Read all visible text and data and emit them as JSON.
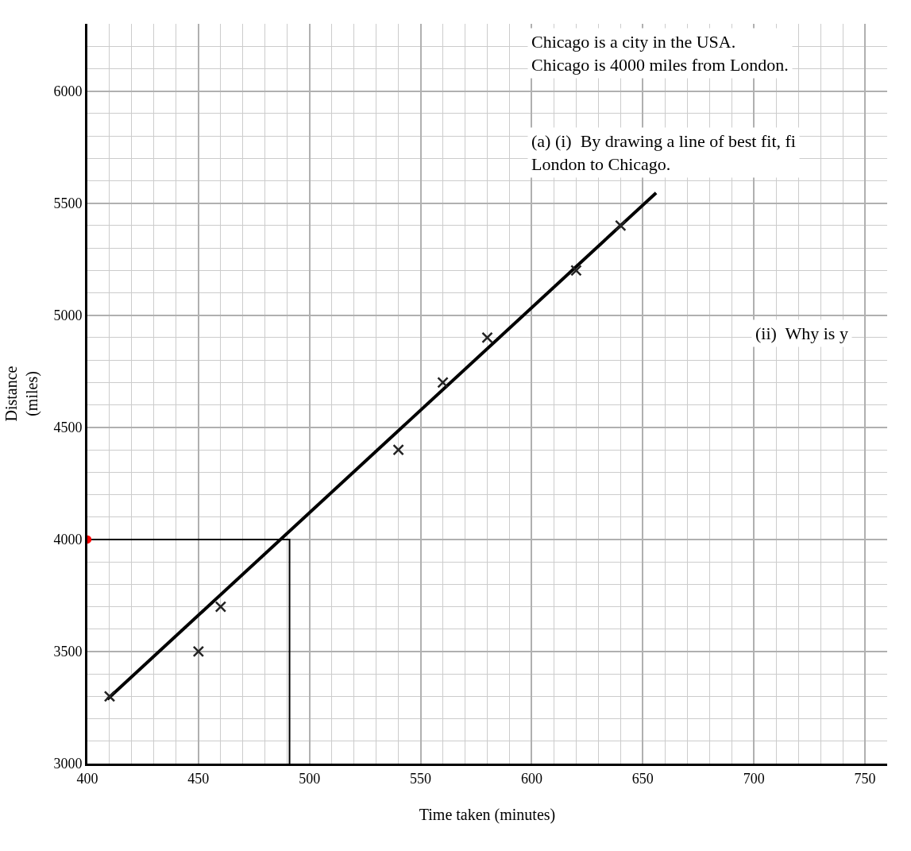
{
  "chart_data": {
    "type": "scatter",
    "xlabel": "Time taken (minutes)",
    "ylabel": "Distance\n(miles)",
    "xlim": [
      400,
      760
    ],
    "ylim": [
      3000,
      6300
    ],
    "xticks": [
      400,
      450,
      500,
      550,
      600,
      650,
      700,
      750
    ],
    "yticks": [
      3000,
      3500,
      4000,
      4500,
      5000,
      5500,
      6000
    ],
    "grid": true,
    "series": [
      {
        "marker": "cross",
        "color": "#222222",
        "x": [
          410,
          450,
          460,
          540,
          560,
          580,
          620,
          640
        ],
        "values": [
          3300,
          3500,
          3700,
          4400,
          4700,
          4900,
          5200,
          5400
        ]
      },
      {
        "type": "line",
        "marker": "none",
        "line_style": "solid",
        "color": "#000000",
        "x": [
          409,
          656
        ],
        "values": [
          3287,
          5546
        ]
      },
      {
        "type": "line",
        "marker": "none",
        "line_style": "solid",
        "color": "#000000",
        "x": [
          400,
          491,
          491
        ],
        "values": [
          4000,
          4000,
          3000
        ]
      },
      {
        "marker": "circle",
        "color": "#ff0000",
        "x": [
          400
        ],
        "values": [
          4000
        ]
      }
    ],
    "annotations": [
      "Chicago is a city in the USA.\nChicago is 4000 miles from London.",
      "(a) (i)  By drawing a line of best fit, fi\nLondon to Chicago.",
      "(ii)  Why is y"
    ]
  }
}
